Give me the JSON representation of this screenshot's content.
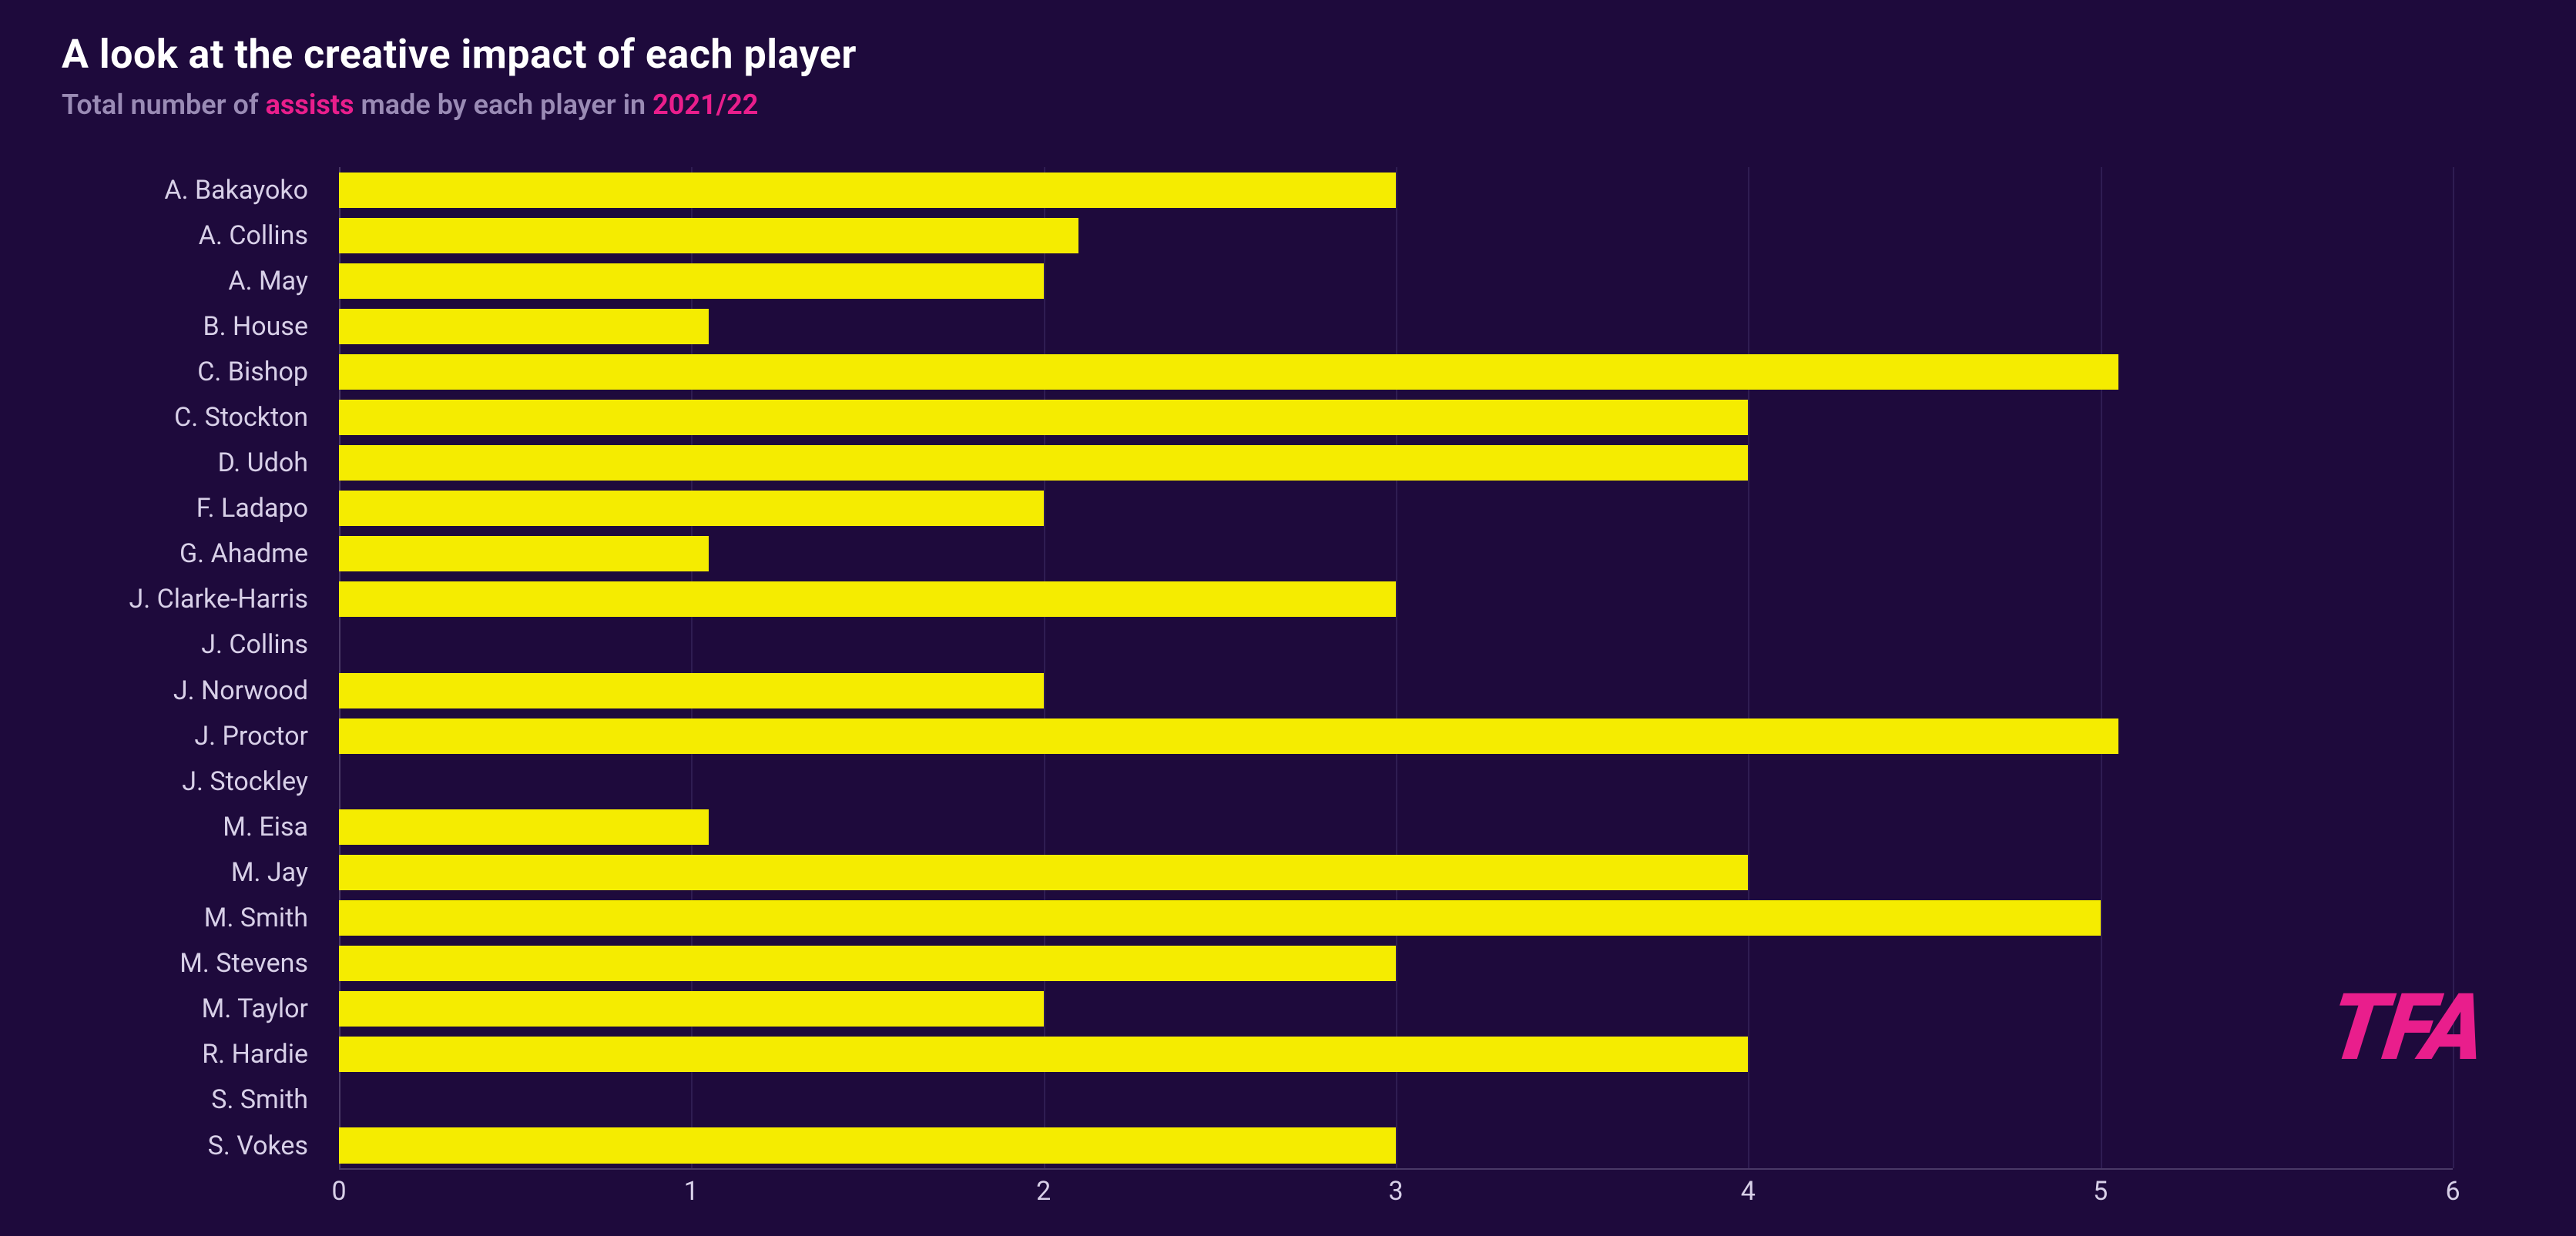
{
  "chart": {
    "type": "bar-horizontal",
    "background_color": "#1e0a3c",
    "title": {
      "text": "A look at the creative impact of each player",
      "color": "#ffffff",
      "fontsize": 52,
      "weight": 700
    },
    "subtitle": {
      "prefix": "Total number of ",
      "highlight1": "assists",
      "middle": " made by each player in ",
      "highlight2": "2021/22",
      "color": "#9a8bb5",
      "highlight_color": "#e91e8c",
      "fontsize": 36,
      "weight": 600
    },
    "x_axis": {
      "min": 0,
      "max": 6,
      "ticks": [
        0,
        1,
        2,
        3,
        4,
        5,
        6
      ],
      "tick_color": "#d8d0e8",
      "tick_fontsize": 34,
      "gridline_color": "#2f1d52",
      "axis_line_color": "#4a3966"
    },
    "y_axis": {
      "label_color": "#d8d0e8",
      "label_fontsize": 34,
      "axis_line_color": "#4a3966"
    },
    "bar_style": {
      "color": "#f5ec00",
      "height_ratio": 0.78
    },
    "players": [
      {
        "name": "A. Bakayoko",
        "value": 3
      },
      {
        "name": "A. Collins",
        "value": 2.1
      },
      {
        "name": "A. May",
        "value": 2
      },
      {
        "name": "B. House",
        "value": 1.05
      },
      {
        "name": "C. Bishop",
        "value": 5.05
      },
      {
        "name": "C. Stockton",
        "value": 4
      },
      {
        "name": "D. Udoh",
        "value": 4
      },
      {
        "name": "F. Ladapo",
        "value": 2
      },
      {
        "name": "G. Ahadme",
        "value": 1.05
      },
      {
        "name": "J. Clarke-Harris",
        "value": 3
      },
      {
        "name": "J. Collins",
        "value": 0
      },
      {
        "name": "J. Norwood",
        "value": 2
      },
      {
        "name": "J. Proctor",
        "value": 5.05
      },
      {
        "name": "J. Stockley",
        "value": 0
      },
      {
        "name": "M. Eisa",
        "value": 1.05
      },
      {
        "name": "M. Jay",
        "value": 4
      },
      {
        "name": "M. Smith",
        "value": 5
      },
      {
        "name": "M. Stevens",
        "value": 3
      },
      {
        "name": "M. Taylor",
        "value": 2
      },
      {
        "name": "R. Hardie",
        "value": 4
      },
      {
        "name": "S. Smith",
        "value": 0
      },
      {
        "name": "S. Vokes",
        "value": 3
      }
    ],
    "watermark": {
      "text": "TFA",
      "color": "#e91e8c",
      "fontsize": 120,
      "weight": 900
    }
  }
}
